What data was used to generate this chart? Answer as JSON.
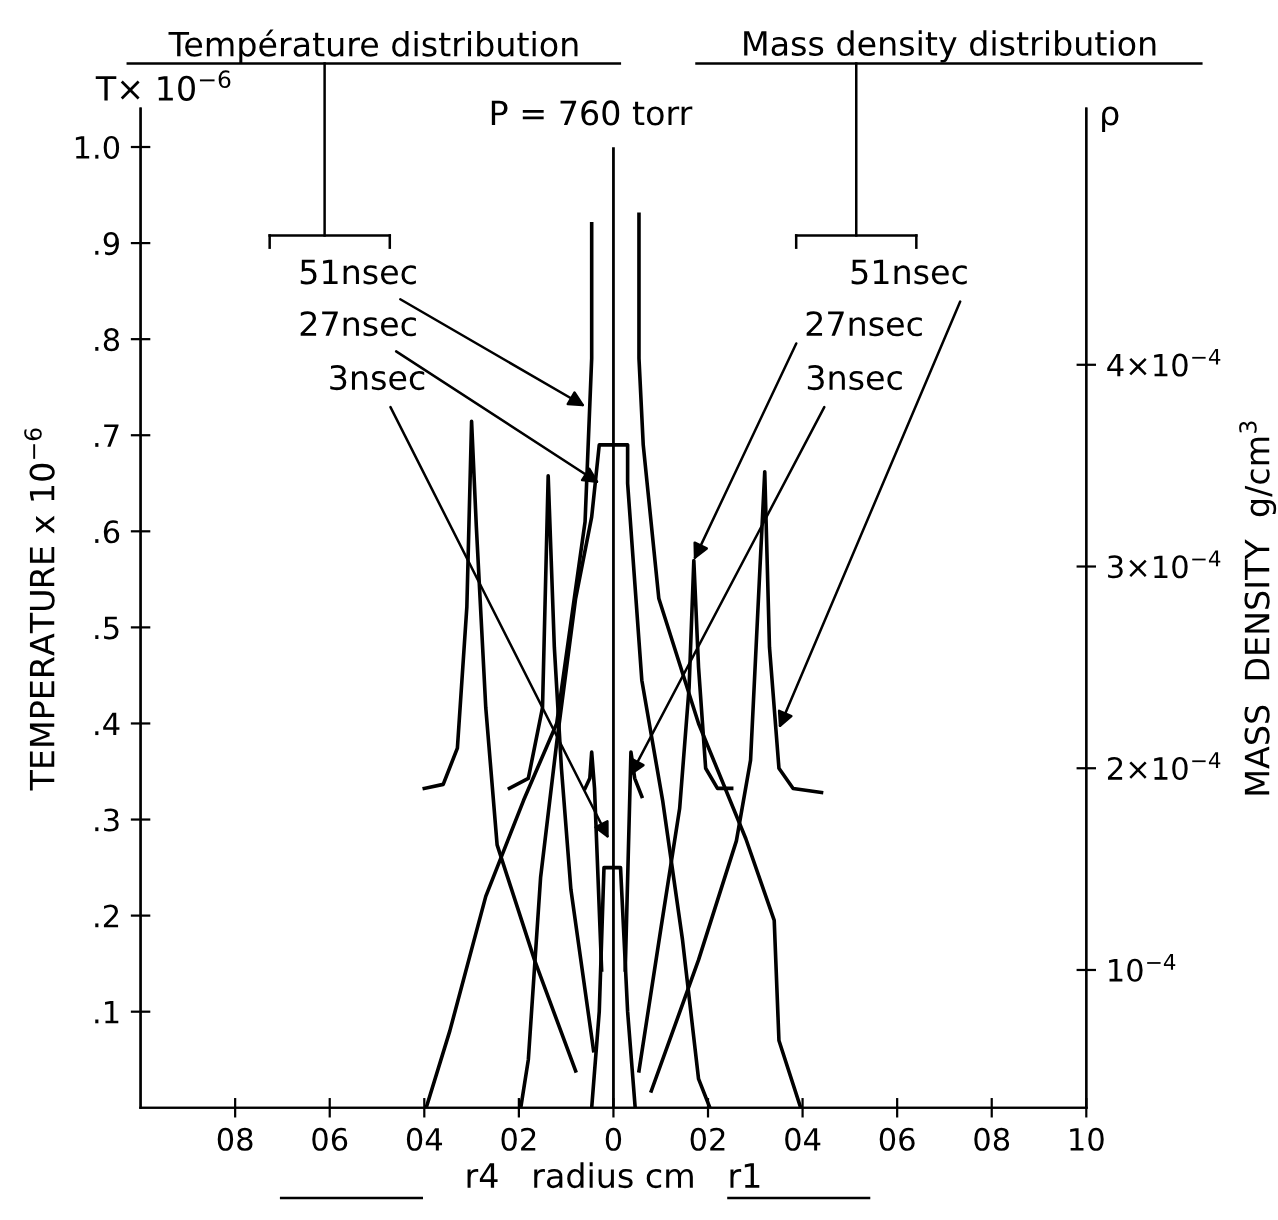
{
  "chart_data": {
    "type": "line",
    "annotations": [
      "Température distribution",
      "Mass density distribution",
      "T× 10$^{−6}$",
      "P = 760 torr",
      "ρ",
      {
        "text": "51nsec",
        "x": -0.6,
        "y": 0.73
      },
      {
        "text": "27nsec",
        "x": -0.3,
        "y": 0.65
      },
      {
        "text": "3nsec",
        "x": -0.1,
        "y": 0.28
      },
      {
        "text": "51nsec",
        "x": 3.5,
        "y": 0.395
      },
      {
        "text": "27nsec",
        "x": 1.7,
        "y": 0.57
      },
      {
        "text": "3nsec",
        "x": 0.35,
        "y": 0.345
      }
    ],
    "xlabel": "r4   radius cm   r1",
    "ylabel": "TEMPERATURE x 10$^{−6}$",
    "y2label": "MASS  DENSITY  g/cm$^{3}$",
    "xlim": [
      -10,
      10
    ],
    "xticks": [
      {
        "value": -8,
        "label": "08"
      },
      {
        "value": -6,
        "label": "06"
      },
      {
        "value": -4,
        "label": "04"
      },
      {
        "value": -2,
        "label": "02"
      },
      0,
      {
        "value": 2,
        "label": "02"
      },
      {
        "value": 4,
        "label": "04"
      },
      {
        "value": 6,
        "label": "06"
      },
      {
        "value": 8,
        "label": "08"
      },
      10
    ],
    "ylim": [
      0,
      1.04
    ],
    "yticks": [
      {
        "value": 0.1,
        "label": ".1"
      },
      {
        "value": 0.2,
        "label": ".2"
      },
      {
        "value": 0.3,
        "label": ".3"
      },
      {
        "value": 0.4,
        "label": ".4"
      },
      {
        "value": 0.5,
        "label": ".5"
      },
      {
        "value": 0.6,
        "label": ".6"
      },
      {
        "value": 0.7,
        "label": ".7"
      },
      {
        "value": 0.8,
        "label": ".8"
      },
      {
        "value": 0.9,
        "label": ".9"
      },
      {
        "value": 1.0,
        "label": "1.0"
      }
    ],
    "y2lim": [
      3.17e-05,
      0.000527
    ],
    "y2ticks": [
      {
        "value": 0.0001,
        "label": "10$^{−4}$"
      },
      {
        "value": 0.0002,
        "label": "2×10$^{−4}$"
      },
      {
        "value": 0.0003,
        "label": "3×10$^{−4}$"
      },
      {
        "value": 0.0004,
        "label": "4×10$^{−4}$"
      }
    ],
    "ref_lines": [
      {
        "axis": "x",
        "value": 0,
        "color": "#000000"
      }
    ],
    "series": [
      {
        "color": "#000000",
        "x": [
          -3.96,
          -3.46,
          -2.7,
          -1.9,
          -1.2,
          -0.6,
          -0.46,
          -0.46,
          null,
          0.54,
          0.54,
          0.63,
          0.96,
          1.8,
          2.8,
          3.4,
          3.5,
          3.96
        ],
        "values": [
          0,
          0.08,
          0.22,
          0.32,
          0.4,
          0.61,
          0.78,
          0.92,
          null,
          0.93,
          0.78,
          0.69,
          0.53,
          0.4,
          0.28,
          0.195,
          0.07,
          0
        ]
      },
      {
        "color": "#000000",
        "x": [
          -1.96,
          -1.8,
          -1.54,
          -1.2,
          -0.8,
          -0.46,
          -0.3,
          0.3,
          0.3,
          0.6,
          1.04,
          1.46,
          1.8,
          2.04
        ],
        "values": [
          0,
          0.05,
          0.24,
          0.38,
          0.53,
          0.615,
          0.69,
          0.69,
          0.65,
          0.445,
          0.32,
          0.175,
          0.03,
          0
        ]
      },
      {
        "color": "#000000",
        "x": [
          -0.46,
          -0.3,
          -0.2,
          0.15,
          0.3,
          0.46
        ],
        "values": [
          0,
          0.1,
          0.25,
          0.25,
          0.1,
          0
        ]
      },
      {
        "color": "#000000",
        "axis": "y2",
        "x": [
          -4.0,
          -3.6,
          -3.3,
          -3.1,
          -3.0,
          -2.9,
          -2.7,
          -2.46,
          -1.67,
          -0.8,
          null,
          0.8,
          1.8,
          2.6,
          2.9,
          3.1,
          3.2,
          3.3,
          3.5,
          3.8,
          4.4
        ],
        "values": [
          0.00019,
          0.000192,
          0.00021,
          0.00028,
          0.000372,
          0.00032,
          0.00023,
          0.000162,
          0.000105,
          5e-05,
          null,
          4e-05,
          0.000105,
          0.000164,
          0.000204,
          0.0003,
          0.000347,
          0.00026,
          0.0002,
          0.00019,
          0.000188
        ]
      },
      {
        "color": "#000000",
        "axis": "y2",
        "x": [
          -2.2,
          -1.8,
          -1.5,
          -1.38,
          -1.25,
          -1.1,
          -0.9,
          -0.42,
          null,
          0.54,
          1.0,
          1.4,
          1.6,
          1.7,
          1.8,
          1.95,
          2.2,
          2.5
        ],
        "values": [
          0.00019,
          0.000195,
          0.00023,
          0.000345,
          0.00026,
          0.0002,
          0.00014,
          6e-05,
          null,
          5e-05,
          0.00012,
          0.00018,
          0.00024,
          0.000303,
          0.00025,
          0.0002,
          0.00019,
          0.00019
        ]
      },
      {
        "color": "#000000",
        "axis": "y2",
        "x": [
          -0.6,
          -0.5,
          -0.46,
          -0.4,
          -0.25,
          null,
          0.25,
          0.37,
          0.45,
          0.6
        ],
        "values": [
          0.00019,
          0.000195,
          0.000208,
          0.00019,
          0.0001,
          null,
          0.0001,
          0.000208,
          0.000195,
          0.000186
        ]
      }
    ]
  }
}
